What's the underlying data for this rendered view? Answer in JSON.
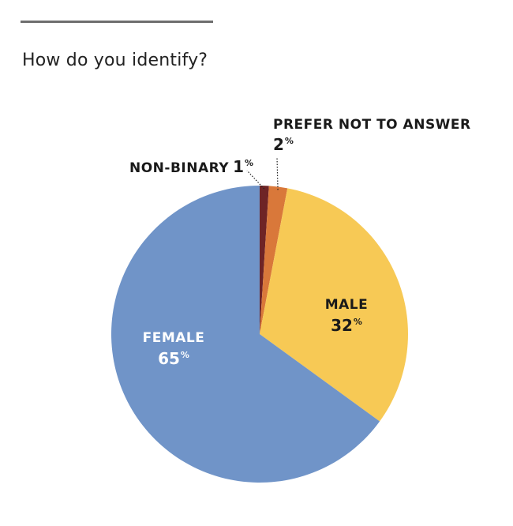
{
  "header": {
    "question": "How do you identify?"
  },
  "chart_data": {
    "type": "pie",
    "title": "How do you identify?",
    "categories": [
      "NON-BINARY",
      "PREFER NOT TO ANSWER",
      "MALE",
      "FEMALE"
    ],
    "values": [
      1,
      2,
      32,
      65
    ],
    "value_labels": [
      "1",
      "2",
      "32",
      "65"
    ],
    "unit": "%",
    "colors": [
      "#6e2426",
      "#d9783a",
      "#f7c955",
      "#7094c8"
    ],
    "start_angle": "12 o'clock",
    "direction": "clockwise"
  }
}
